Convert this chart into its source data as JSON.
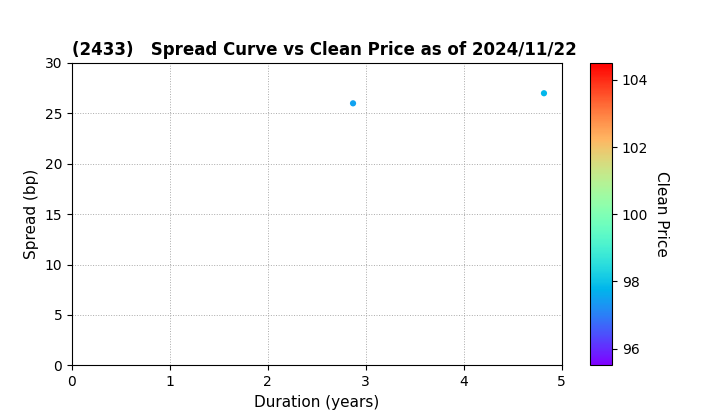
{
  "title": "(2433)   Spread Curve vs Clean Price as of 2024/11/22",
  "xlabel": "Duration (years)",
  "ylabel": "Spread (bp)",
  "colorbar_label": "Clean Price",
  "points": [
    {
      "duration": 2.87,
      "spread": 26.0,
      "clean_price": 97.5
    },
    {
      "duration": 4.82,
      "spread": 27.0,
      "clean_price": 97.8
    }
  ],
  "xlim": [
    0,
    5
  ],
  "ylim": [
    0,
    30
  ],
  "xticks": [
    0,
    1,
    2,
    3,
    4,
    5
  ],
  "yticks": [
    0,
    5,
    10,
    15,
    20,
    25,
    30
  ],
  "cmap_name": "rainbow",
  "cbar_vmin": 95.5,
  "cbar_vmax": 104.5,
  "cbar_ticks": [
    96,
    98,
    100,
    102,
    104
  ],
  "background_color": "#ffffff",
  "grid_color": "#aaaaaa",
  "marker_size": 20,
  "title_fontsize": 12,
  "axis_label_fontsize": 11,
  "tick_fontsize": 10,
  "cbar_tick_fontsize": 10
}
